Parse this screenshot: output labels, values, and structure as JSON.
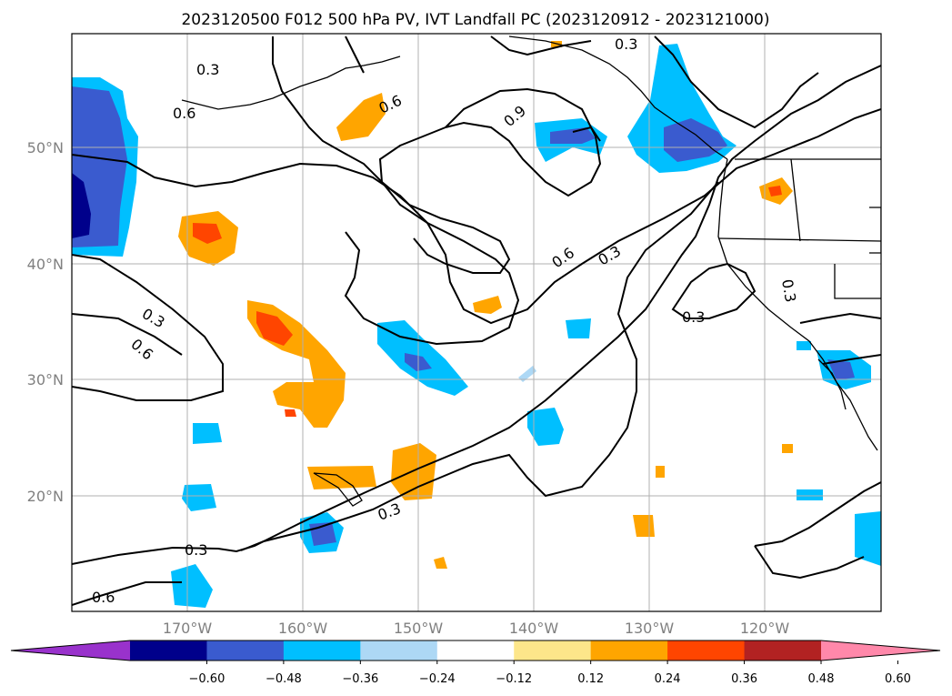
{
  "title": "2023120500 F012 500 hPa PV, IVT Landfall PC (2023120912 - 2023121000)",
  "lon_labels": [
    "170°W",
    "160°W",
    "150°W",
    "140°W",
    "130°W",
    "120°W"
  ],
  "lat_labels": [
    "50°N",
    "40°N",
    "30°N",
    "20°N"
  ],
  "contour_labels": [
    "0.3",
    "0.6",
    "0.6",
    "0.9",
    "0.3",
    "0.3",
    "0.6",
    "0.6",
    "0.3",
    "0.3",
    "0.3",
    "0.6",
    "0.3",
    "0.3"
  ],
  "colorbar": {
    "ticks": [
      "−0.60",
      "−0.48",
      "−0.36",
      "−0.24",
      "−0.12",
      "0.12",
      "0.24",
      "0.36",
      "0.48",
      "0.60"
    ],
    "colors": [
      "#9932cc",
      "#00008b",
      "#3a5bcf",
      "#00bfff",
      "#add8f5",
      "#ffffff",
      "#fde68a",
      "#ffa500",
      "#ff4500",
      "#b22222",
      "#ff88aa"
    ]
  }
}
